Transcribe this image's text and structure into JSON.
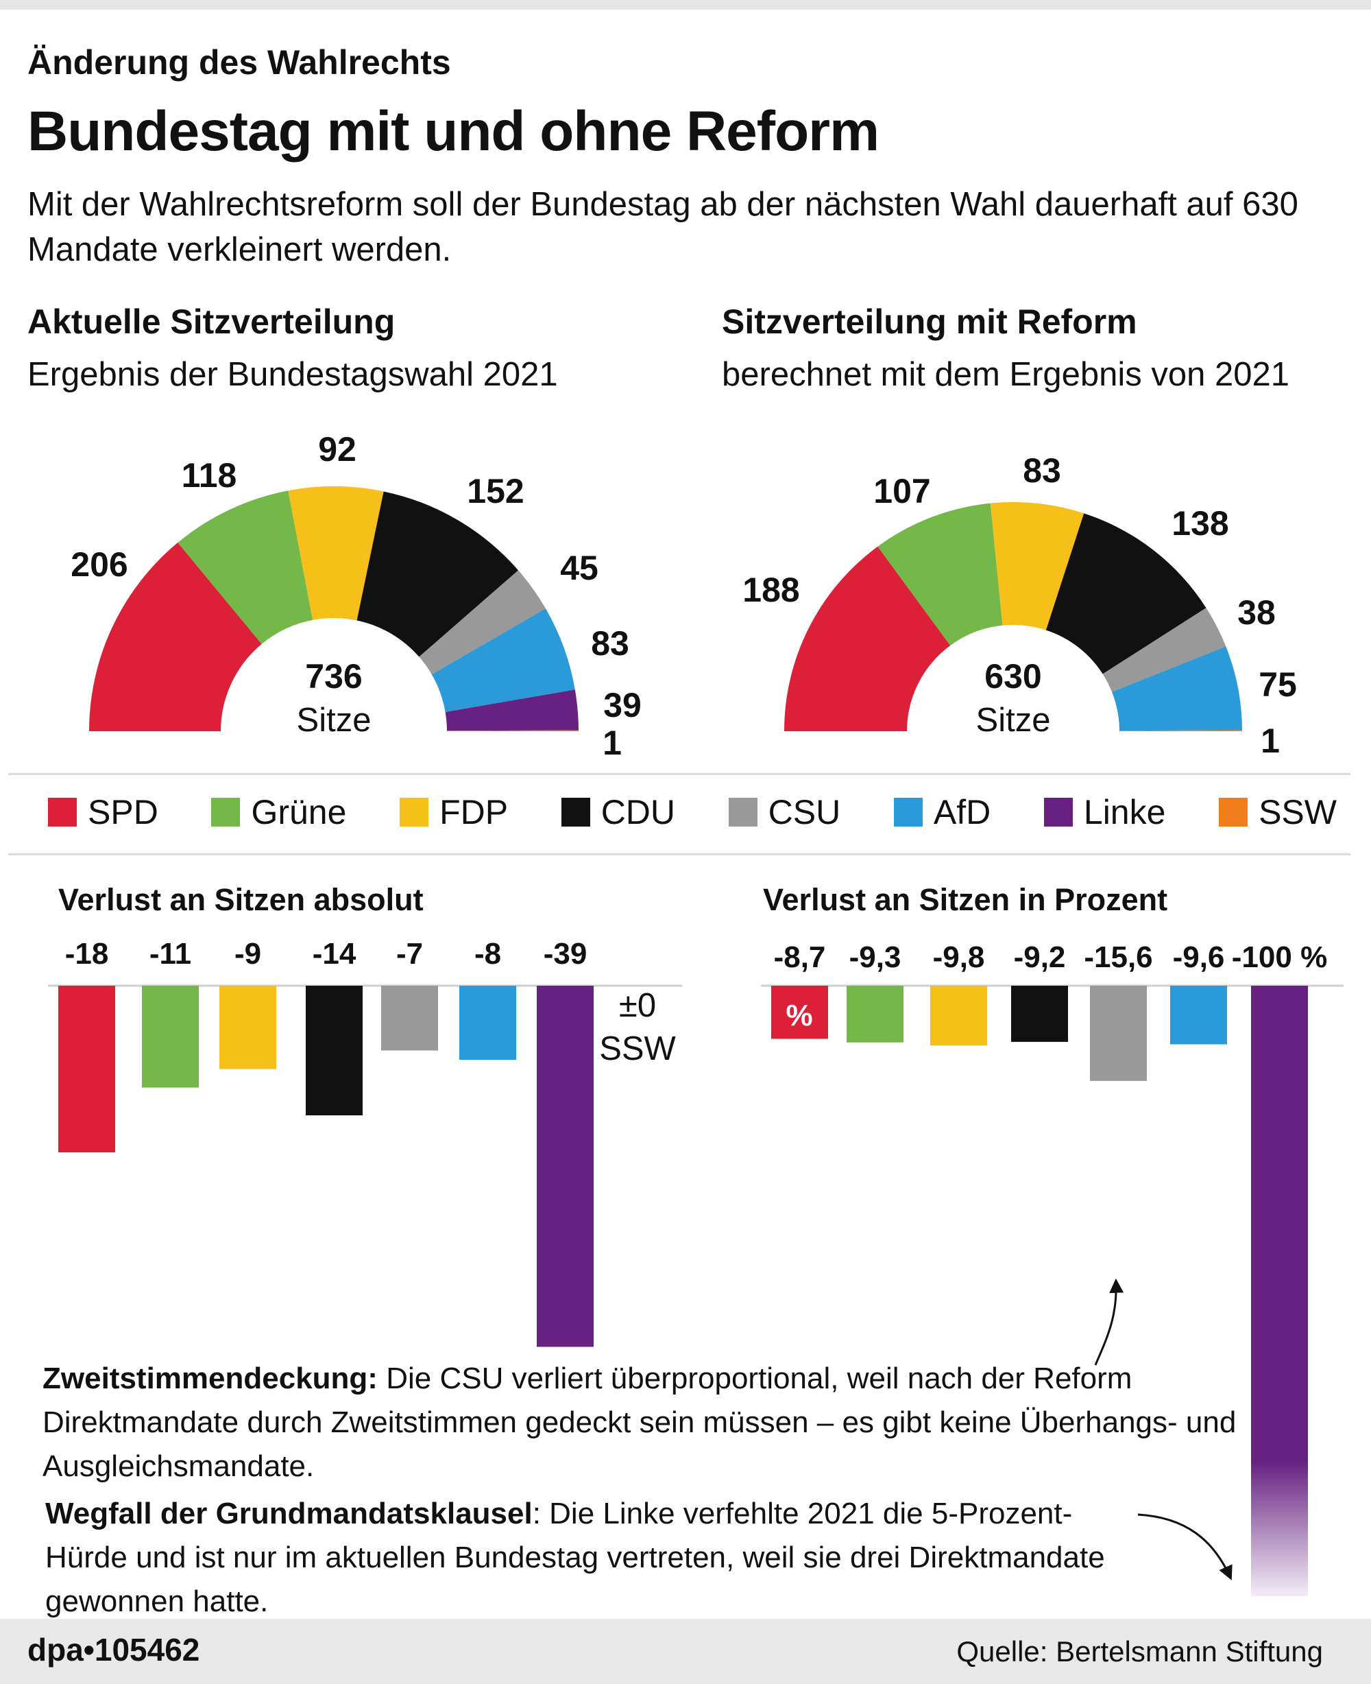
{
  "kicker": "Änderung des Wahlrechts",
  "headline": "Bundestag mit und ohne Reform",
  "intro": "Mit der Wahlrechtsreform soll der Bundestag ab der nächsten Wahl dauerhaft auf 630 Mandate verkleinert werden.",
  "left_section": {
    "title": "Aktuelle Sitzverteilung",
    "subtitle": "Ergebnis der Bundestagswahl 2021"
  },
  "right_section": {
    "title": "Sitzverteilung mit Reform",
    "subtitle": "berechnet mit dem Ergebnis von 2021"
  },
  "colors": {
    "SPD": "#dc2038",
    "Grüne": "#74b84a",
    "FDP": "#f7bf1a",
    "CDU": "#111111",
    "CSU": "#999999",
    "AfD": "#2a9bd8",
    "Linke": "#672281",
    "SSW": "#f07f1b"
  },
  "legend": [
    "SPD",
    "Grüne",
    "FDP",
    "CDU",
    "CSU",
    "AfD",
    "Linke",
    "SSW"
  ],
  "chart_data": [
    {
      "type": "pie",
      "title": "Aktuelle Sitzverteilung",
      "center_value": "736",
      "center_label": "Sitze",
      "categories": [
        "SPD",
        "Grüne",
        "FDP",
        "CDU",
        "CSU",
        "AfD",
        "Linke",
        "SSW"
      ],
      "values": [
        206,
        118,
        92,
        152,
        45,
        83,
        39,
        1
      ]
    },
    {
      "type": "pie",
      "title": "Sitzverteilung mit Reform",
      "center_value": "630",
      "center_label": "Sitze",
      "categories": [
        "SPD",
        "Grüne",
        "FDP",
        "CDU",
        "CSU",
        "AfD",
        "SSW"
      ],
      "values": [
        188,
        107,
        83,
        138,
        38,
        75,
        1
      ]
    },
    {
      "type": "bar",
      "title": "Verlust an Sitzen absolut",
      "categories": [
        "SPD",
        "Grüne",
        "FDP",
        "CDU",
        "CSU",
        "AfD",
        "Linke"
      ],
      "values": [
        -18,
        -11,
        -9,
        -14,
        -7,
        -8,
        -39
      ],
      "labels": [
        "-18",
        "-11",
        "-9",
        "-14",
        "-7",
        "-8",
        "-39"
      ],
      "ssw_note_1": "±0",
      "ssw_note_2": "SSW",
      "ylim": [
        -39,
        0
      ]
    },
    {
      "type": "bar",
      "title": "Verlust an Sitzen in Prozent",
      "categories": [
        "SPD",
        "Grüne",
        "FDP",
        "CDU",
        "CSU",
        "AfD",
        "Linke"
      ],
      "values": [
        -8.7,
        -9.3,
        -9.8,
        -9.2,
        -15.6,
        -9.6,
        -100
      ],
      "labels": [
        "-8,7",
        "-9,3",
        "-9,8",
        "-9,2",
        "-15,6",
        "-9,6",
        "-100 %"
      ],
      "unit_marker": "%"
    }
  ],
  "notes": {
    "zweitstimme_bold": "Zweitstimmendeckung:",
    "zweitstimme_text": " Die CSU verliert überproportional, weil nach der Reform Direktmandate durch Zweitstimmen gedeckt sein müssen – es gibt keine Überhangs- und Ausgleichsmandate.",
    "grundmandat_bold": "Wegfall der Grundmandatsklausel",
    "grundmandat_text": ": Die Linke verfehlte 2021 die 5-Prozent-Hürde und ist nur im aktuellen Bundestag vertreten, weil sie drei Direktmandate gewonnen hatte."
  },
  "footer": {
    "agency": "dpa•105462",
    "source": "Quelle: Bertelsmann Stiftung"
  }
}
